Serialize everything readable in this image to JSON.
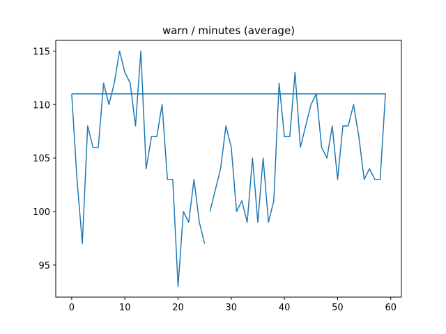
{
  "chart_data": {
    "type": "line",
    "title": "warn / minutes (average)",
    "xlabel": "",
    "ylabel": "",
    "xlim": [
      -3.0,
      62.0
    ],
    "ylim": [
      92.0,
      116.0
    ],
    "xticks": [
      0,
      10,
      20,
      30,
      40,
      50,
      60
    ],
    "yticks": [
      95,
      100,
      105,
      110,
      115
    ],
    "grid": false,
    "legend": "none",
    "line_color": "#1f77b4",
    "series": [
      {
        "segments": [
          [
            [
              0,
              111
            ],
            [
              1,
              103
            ],
            [
              2,
              97
            ],
            [
              3,
              108
            ],
            [
              4,
              106
            ],
            [
              5,
              106
            ],
            [
              6,
              112
            ],
            [
              7,
              110
            ],
            [
              8,
              112
            ],
            [
              9,
              115
            ],
            [
              10,
              113
            ],
            [
              11,
              112
            ],
            [
              12,
              108
            ],
            [
              13,
              115
            ],
            [
              14,
              104
            ],
            [
              15,
              107
            ],
            [
              16,
              107
            ],
            [
              17,
              110
            ],
            [
              18,
              103
            ],
            [
              19,
              103
            ],
            [
              20,
              93
            ],
            [
              21,
              100
            ],
            [
              22,
              99
            ],
            [
              23,
              103
            ],
            [
              24,
              99
            ],
            [
              25,
              97
            ]
          ],
          [
            [
              26,
              100
            ],
            [
              27,
              102
            ],
            [
              28,
              104
            ],
            [
              29,
              108
            ],
            [
              30,
              106
            ],
            [
              31,
              100
            ],
            [
              32,
              101
            ],
            [
              33,
              99
            ],
            [
              34,
              105
            ],
            [
              35,
              99
            ],
            [
              36,
              105
            ],
            [
              37,
              99
            ],
            [
              38,
              101
            ],
            [
              39,
              112
            ],
            [
              40,
              107
            ],
            [
              41,
              107
            ],
            [
              42,
              113
            ],
            [
              43,
              106
            ],
            [
              44,
              108
            ],
            [
              45,
              110
            ],
            [
              46,
              111
            ],
            [
              47,
              106
            ],
            [
              48,
              105
            ],
            [
              49,
              108
            ],
            [
              50,
              103
            ],
            [
              51,
              108
            ],
            [
              52,
              108
            ],
            [
              53,
              110
            ],
            [
              54,
              107
            ],
            [
              55,
              103
            ],
            [
              56,
              104
            ],
            [
              57,
              103
            ],
            [
              58,
              103
            ],
            [
              59,
              111
            ],
            [
              59,
              111
            ],
            [
              0,
              111
            ]
          ]
        ]
      }
    ]
  }
}
